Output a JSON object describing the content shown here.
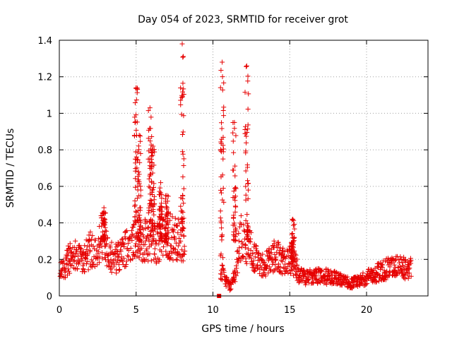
{
  "chart_data": {
    "type": "scatter",
    "title": "Day 054 of 2023, SRMTID for receiver grot",
    "xlabel": "GPS time / hours",
    "ylabel": "SRMTID / TECUs",
    "xlim": [
      0,
      24
    ],
    "ylim": [
      0,
      1.4
    ],
    "xticks": [
      0,
      5,
      10,
      15,
      20
    ],
    "yticks": [
      0,
      0.2,
      0.4,
      0.6,
      0.8,
      1,
      1.2,
      1.4
    ],
    "xtick_labels": [
      "0",
      "5",
      "10",
      "15",
      "20"
    ],
    "ytick_labels": [
      "0",
      "0.2",
      "0.4",
      "0.6",
      "0.8",
      "1",
      "1.2",
      "1.4"
    ],
    "grid": true,
    "marker": "plus",
    "color": "#e60000",
    "series": [
      {
        "name": "SRMTID",
        "baseline": [
          [
            0.0,
            0.14
          ],
          [
            0.3,
            0.15
          ],
          [
            0.6,
            0.2
          ],
          [
            1.0,
            0.22
          ],
          [
            1.5,
            0.19
          ],
          [
            2.0,
            0.25
          ],
          [
            2.5,
            0.27
          ],
          [
            2.9,
            0.36
          ],
          [
            3.2,
            0.22
          ],
          [
            3.6,
            0.2
          ],
          [
            4.0,
            0.22
          ],
          [
            4.4,
            0.28
          ],
          [
            4.8,
            0.32
          ],
          [
            5.0,
            0.35
          ],
          [
            5.5,
            0.3
          ],
          [
            6.0,
            0.3
          ],
          [
            6.5,
            0.3
          ],
          [
            7.0,
            0.34
          ],
          [
            7.5,
            0.32
          ],
          [
            8.0,
            0.3
          ],
          [
            8.2,
            0.25
          ]
        ],
        "baseline2": [
          [
            10.5,
            0.14
          ],
          [
            10.8,
            0.09
          ],
          [
            11.1,
            0.05
          ],
          [
            11.4,
            0.1
          ],
          [
            11.8,
            0.32
          ],
          [
            12.2,
            0.28
          ],
          [
            12.6,
            0.24
          ],
          [
            13.0,
            0.17
          ],
          [
            13.5,
            0.18
          ],
          [
            14.0,
            0.22
          ],
          [
            14.5,
            0.2
          ],
          [
            15.0,
            0.2
          ],
          [
            15.3,
            0.18
          ],
          [
            15.6,
            0.12
          ],
          [
            16.0,
            0.1
          ],
          [
            17.0,
            0.11
          ],
          [
            18.0,
            0.1
          ],
          [
            18.5,
            0.08
          ],
          [
            19.0,
            0.07
          ],
          [
            19.5,
            0.08
          ],
          [
            20.0,
            0.1
          ],
          [
            20.5,
            0.12
          ],
          [
            21.0,
            0.14
          ],
          [
            21.5,
            0.15
          ],
          [
            22.0,
            0.16
          ],
          [
            22.5,
            0.15
          ],
          [
            22.9,
            0.15
          ]
        ],
        "spikes": [
          {
            "x": 2.9,
            "y_min": 0.3,
            "y_max": 0.46
          },
          {
            "x": 5.0,
            "y_min": 0.4,
            "y_max": 1.14
          },
          {
            "x": 5.2,
            "y_min": 0.3,
            "y_max": 0.88
          },
          {
            "x": 5.9,
            "y_min": 0.4,
            "y_max": 1.03
          },
          {
            "x": 6.1,
            "y_min": 0.35,
            "y_max": 0.82
          },
          {
            "x": 6.6,
            "y_min": 0.3,
            "y_max": 0.62
          },
          {
            "x": 7.0,
            "y_min": 0.3,
            "y_max": 0.55
          },
          {
            "x": 8.0,
            "y_min": 0.35,
            "y_max": 1.38
          },
          {
            "x": 10.6,
            "y_min": 0.2,
            "y_max": 1.28
          },
          {
            "x": 11.4,
            "y_min": 0.3,
            "y_max": 0.95
          },
          {
            "x": 12.2,
            "y_min": 0.3,
            "y_max": 1.26
          },
          {
            "x": 15.2,
            "y_min": 0.2,
            "y_max": 0.42
          }
        ],
        "outliers": [
          {
            "x": 10.4,
            "y": 0.0,
            "marker": "square"
          }
        ]
      }
    ]
  }
}
